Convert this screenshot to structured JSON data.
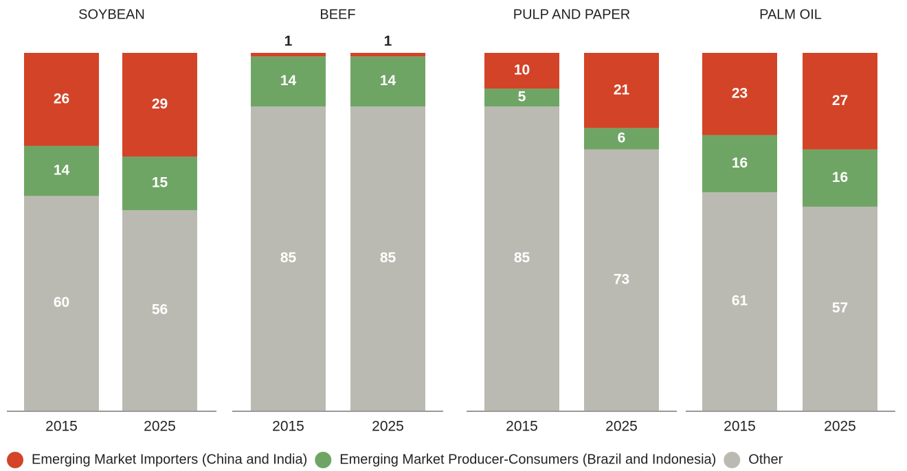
{
  "chart_data": [
    {
      "type": "bar",
      "stacked": true,
      "title": "SOYBEAN",
      "categories": [
        "2015",
        "2025"
      ],
      "ylim": [
        0,
        100
      ],
      "series": [
        {
          "name": "Emerging Market Importers (China and India)",
          "color": "#d34327",
          "values": [
            26,
            29
          ]
        },
        {
          "name": "Emerging Market Producer-Consumers (Brazil and Indonesia)",
          "color": "#6fa564",
          "values": [
            14,
            15
          ]
        },
        {
          "name": "Other",
          "color": "#bbbab2",
          "values": [
            60,
            56
          ]
        }
      ]
    },
    {
      "type": "bar",
      "stacked": true,
      "title": "BEEF",
      "categories": [
        "2015",
        "2025"
      ],
      "ylim": [
        0,
        100
      ],
      "series": [
        {
          "name": "Emerging Market Importers (China and India)",
          "color": "#d34327",
          "values": [
            1,
            1
          ]
        },
        {
          "name": "Emerging Market Producer-Consumers (Brazil and Indonesia)",
          "color": "#6fa564",
          "values": [
            14,
            14
          ]
        },
        {
          "name": "Other",
          "color": "#bbbab2",
          "values": [
            85,
            85
          ]
        }
      ]
    },
    {
      "type": "bar",
      "stacked": true,
      "title": "PULP AND PAPER",
      "categories": [
        "2015",
        "2025"
      ],
      "ylim": [
        0,
        100
      ],
      "series": [
        {
          "name": "Emerging Market Importers (China and India)",
          "color": "#d34327",
          "values": [
            10,
            21
          ]
        },
        {
          "name": "Emerging Market Producer-Consumers (Brazil and Indonesia)",
          "color": "#6fa564",
          "values": [
            5,
            6
          ]
        },
        {
          "name": "Other",
          "color": "#bbbab2",
          "values": [
            85,
            73
          ]
        }
      ]
    },
    {
      "type": "bar",
      "stacked": true,
      "title": "PALM OIL",
      "categories": [
        "2015",
        "2025"
      ],
      "ylim": [
        0,
        100
      ],
      "series": [
        {
          "name": "Emerging Market Importers (China and India)",
          "color": "#d34327",
          "values": [
            23,
            27
          ]
        },
        {
          "name": "Emerging Market Producer-Consumers (Brazil and Indonesia)",
          "color": "#6fa564",
          "values": [
            16,
            16
          ]
        },
        {
          "name": "Other",
          "color": "#bbbab2",
          "values": [
            61,
            57
          ]
        }
      ]
    }
  ]
}
